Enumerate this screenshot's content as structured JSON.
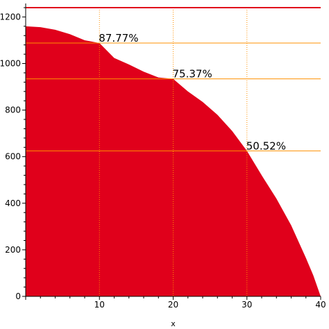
{
  "chart_data": {
    "type": "area",
    "title": "",
    "xlabel": "x",
    "ylabel": "",
    "xlim": [
      0,
      40
    ],
    "ylim": [
      0,
      1240
    ],
    "x_ticks": [
      10,
      20,
      30,
      40
    ],
    "y_ticks": [
      0,
      200,
      400,
      600,
      800,
      1000,
      1200
    ],
    "curve": {
      "x": [
        0,
        2,
        4,
        6,
        8,
        10,
        12,
        14,
        16,
        18,
        20,
        22,
        24,
        26,
        28,
        30,
        32,
        34,
        36,
        38,
        39,
        40
      ],
      "y": [
        1160,
        1156,
        1145,
        1126,
        1100,
        1088,
        1024,
        996,
        965,
        940,
        934,
        880,
        835,
        780,
        710,
        625,
        520,
        420,
        305,
        165,
        90,
        0
      ]
    },
    "top_line_y": 1240,
    "reference_lines": [
      {
        "x": 10,
        "y": 1088,
        "label": "87.77%"
      },
      {
        "x": 20,
        "y": 934,
        "label": "75.37%"
      },
      {
        "x": 30,
        "y": 625,
        "label": "50.52%"
      }
    ],
    "colors": {
      "fill": "#e0001b",
      "top_line": "#e0001b",
      "ref_line": "#ff9000",
      "axis": "#000000"
    }
  }
}
